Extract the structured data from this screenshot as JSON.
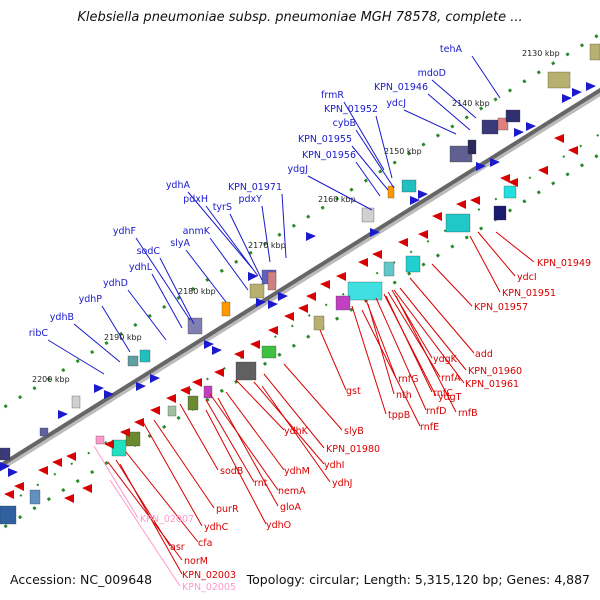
{
  "title": "Klebsiella pneumoniae subsp. pneumoniae MGH 78578, complete ...",
  "footer": {
    "accession_label": "Accession: NC_009648",
    "topology_label": "Topology: circular; Length: 5,315,120 bp; Genes: 4,887"
  },
  "colors": {
    "plus_strand": "#1a1acc",
    "minus_strand": "#d80000",
    "faded": "#ff99cc",
    "backbone": "#666666",
    "tick": "#2a8a2a"
  },
  "scale_labels": [
    "2130 kbp",
    "2140 kbp",
    "2150 kbp",
    "2160 kbp",
    "2170 kbp",
    "2180 kbp",
    "2190 kbp",
    "2200 kbp"
  ],
  "genes_plus": [
    "tehA",
    "mdoD",
    "KPN_01946",
    "ydcJ",
    "frmR",
    "KPN_01952",
    "cybB",
    "KPN_01955",
    "KPN_01956",
    "ydgJ",
    "ydhA",
    "KPN_01971",
    "pdxH",
    "tyrS",
    "pdxY",
    "anmK",
    "slyA",
    "ydhF",
    "sodC",
    "ydhL",
    "ydhD",
    "ydhP",
    "ydhB",
    "ribC"
  ],
  "genes_minus": [
    "KPN_01949",
    "ydcI",
    "KPN_01951",
    "KPN_01957",
    "add",
    "ydgK",
    "KPN_01960",
    "rnfA",
    "KPN_01961",
    "ydgT",
    "rnfC",
    "rnfB",
    "rnfG",
    "nth",
    "rnfD",
    "tppB",
    "rnfE",
    "gst",
    "slyB",
    "KPN_01980",
    "ydhK",
    "ydhI",
    "ydhJ",
    "ydhM",
    "nemA",
    "gloA",
    "rnt",
    "sodB",
    "ydhO",
    "purR",
    "ydhC",
    "cfa",
    "asr",
    "norM",
    "KPN_02003"
  ],
  "genes_faded": [
    "KPN_02007",
    "KPN_02005"
  ]
}
